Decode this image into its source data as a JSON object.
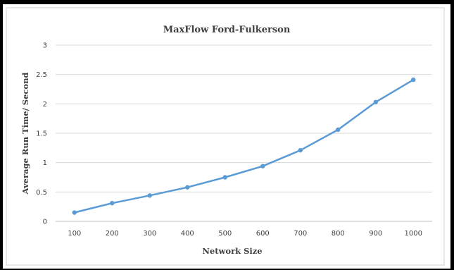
{
  "chart_data": {
    "type": "line",
    "title": "MaxFlow Ford-Fulkerson",
    "xlabel": "Network Size",
    "ylabel": "Average Run Time/ Second",
    "x": [
      100,
      200,
      300,
      400,
      500,
      600,
      700,
      800,
      900,
      1000
    ],
    "series": [
      {
        "values": [
          0.15,
          0.31,
          0.44,
          0.58,
          0.75,
          0.94,
          1.21,
          1.56,
          2.03,
          2.41
        ]
      }
    ],
    "ylim": [
      0,
      3
    ],
    "yticks": [
      "0",
      "0.5",
      "1",
      "1.5",
      "2",
      "2.5",
      "3"
    ],
    "xticks": [
      "100",
      "200",
      "300",
      "400",
      "500",
      "600",
      "700",
      "800",
      "900",
      "1000"
    ],
    "grid": true,
    "legend": "none",
    "colors": {
      "line": "#5b9bd5",
      "grid": "#d9d9d9",
      "axis": "#bfbfbf",
      "frame": "#000000"
    }
  }
}
